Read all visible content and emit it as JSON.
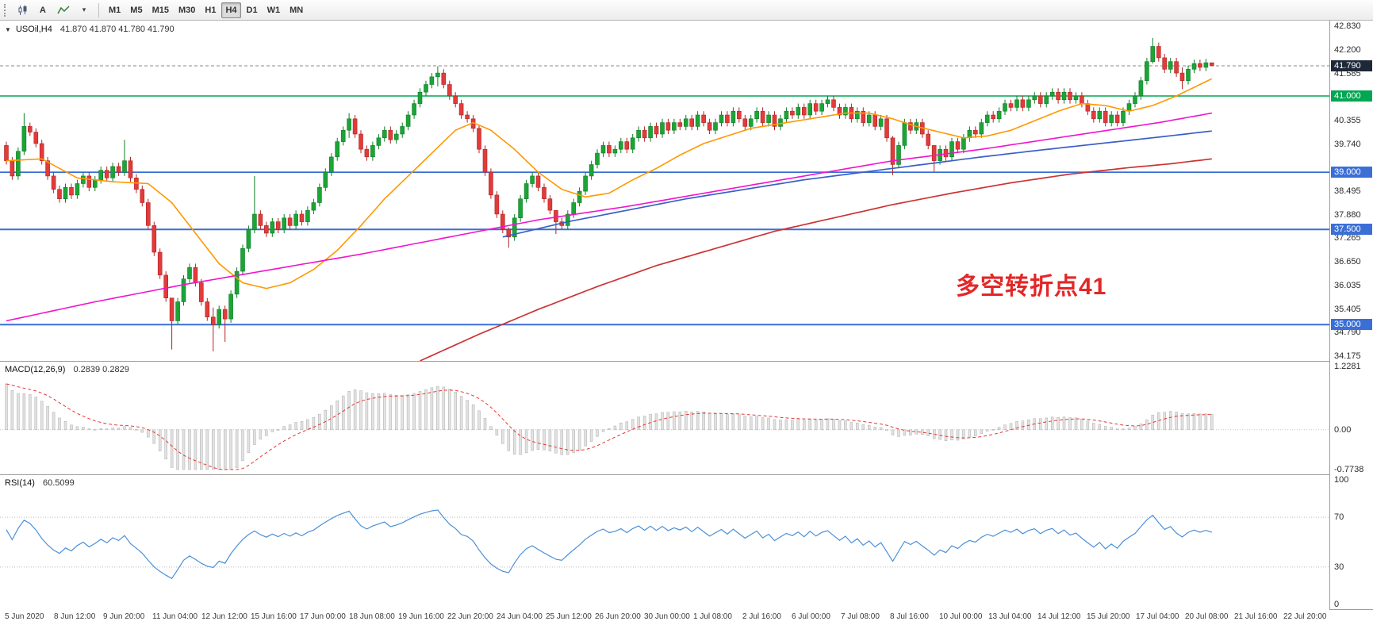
{
  "toolbar": {
    "text_tool_label": "A",
    "timeframes": [
      {
        "label": "M1",
        "active": false
      },
      {
        "label": "M5",
        "active": false
      },
      {
        "label": "M15",
        "active": false
      },
      {
        "label": "M30",
        "active": false
      },
      {
        "label": "H1",
        "active": false
      },
      {
        "label": "H4",
        "active": true
      },
      {
        "label": "D1",
        "active": false
      },
      {
        "label": "W1",
        "active": false
      },
      {
        "label": "MN",
        "active": false
      }
    ]
  },
  "header": {
    "dropdown_glyph": "▼",
    "symbol": "USOil,H4",
    "ohlc": "41.870 41.870 41.780 41.790"
  },
  "indicators": {
    "macd_label": "MACD(12,26,9)",
    "macd_values": "0.2839 0.2829",
    "rsi_label": "RSI(14)",
    "rsi_value": "60.5099"
  },
  "annotation": {
    "text": "多空转折点41"
  },
  "chart_data": {
    "type": "candlestick",
    "symbol": "USOil",
    "timeframe": "H4",
    "last_quote": {
      "open": 41.87,
      "high": 41.87,
      "low": 41.78,
      "close": 41.79
    },
    "y_range": [
      34.175,
      42.83
    ],
    "first_open": 39.7,
    "default_wick": 0.1,
    "closes": [
      39.3,
      38.9,
      39.55,
      40.2,
      40.05,
      39.75,
      39.3,
      38.9,
      38.55,
      38.3,
      38.6,
      38.4,
      38.7,
      38.9,
      38.6,
      38.8,
      39.05,
      38.85,
      39.15,
      39.0,
      39.3,
      38.85,
      38.55,
      38.2,
      37.6,
      36.9,
      36.3,
      35.7,
      35.1,
      35.6,
      36.2,
      36.5,
      36.1,
      35.6,
      35.2,
      35.0,
      35.4,
      35.15,
      35.8,
      36.4,
      37.0,
      37.5,
      37.9,
      37.6,
      37.4,
      37.7,
      37.5,
      37.8,
      37.6,
      37.9,
      37.7,
      38.0,
      38.2,
      38.6,
      39.0,
      39.4,
      39.8,
      40.1,
      40.4,
      40.0,
      39.6,
      39.4,
      39.7,
      39.9,
      40.1,
      39.85,
      40.0,
      40.2,
      40.5,
      40.8,
      41.1,
      41.3,
      41.5,
      41.6,
      41.3,
      41.0,
      40.8,
      40.5,
      40.4,
      40.15,
      39.6,
      39.0,
      38.4,
      37.9,
      37.5,
      37.3,
      37.8,
      38.3,
      38.7,
      38.9,
      38.6,
      38.3,
      38.0,
      37.7,
      37.6,
      37.9,
      38.2,
      38.5,
      38.9,
      39.2,
      39.5,
      39.7,
      39.5,
      39.6,
      39.8,
      39.6,
      39.9,
      40.1,
      39.9,
      40.2,
      40.0,
      40.3,
      40.1,
      40.3,
      40.2,
      40.4,
      40.2,
      40.5,
      40.3,
      40.1,
      40.3,
      40.5,
      40.3,
      40.6,
      40.4,
      40.2,
      40.4,
      40.6,
      40.3,
      40.5,
      40.2,
      40.4,
      40.6,
      40.5,
      40.7,
      40.5,
      40.8,
      40.6,
      40.8,
      40.9,
      40.7,
      40.5,
      40.7,
      40.4,
      40.6,
      40.3,
      40.5,
      40.2,
      40.4,
      39.9,
      39.2,
      39.7,
      40.3,
      40.1,
      40.3,
      40.0,
      39.7,
      39.3,
      39.6,
      39.4,
      39.8,
      39.6,
      39.9,
      40.1,
      40.0,
      40.3,
      40.5,
      40.4,
      40.6,
      40.8,
      40.7,
      40.9,
      40.7,
      40.9,
      41.0,
      40.8,
      41.0,
      41.1,
      40.9,
      41.1,
      40.9,
      41.0,
      40.8,
      40.6,
      40.4,
      40.6,
      40.3,
      40.5,
      40.3,
      40.6,
      40.8,
      41.0,
      41.4,
      41.9,
      42.3,
      42.0,
      41.7,
      41.9,
      41.6,
      41.4,
      41.7,
      41.85,
      41.75,
      41.87,
      41.79
    ],
    "wick_overrides": {
      "3": [
        40.55,
        39.45
      ],
      "20": [
        39.85,
        38.9
      ],
      "28": [
        35.45,
        34.35
      ],
      "35": [
        35.45,
        34.3
      ],
      "37": [
        35.5,
        34.55
      ],
      "42": [
        38.9,
        37.4
      ],
      "58": [
        40.55,
        39.9
      ],
      "73": [
        41.78,
        41.25
      ],
      "85": [
        37.55,
        37.02
      ],
      "93": [
        37.85,
        37.38
      ],
      "150": [
        39.95,
        38.92
      ],
      "157": [
        39.65,
        39.02
      ],
      "194": [
        42.52,
        41.85
      ],
      "199": [
        41.75,
        41.18
      ],
      "204": [
        41.87,
        41.78
      ]
    },
    "price_ticks": [
      42.83,
      42.2,
      41.585,
      40.355,
      39.74,
      38.495,
      37.88,
      37.265,
      36.65,
      36.035,
      35.405,
      34.79,
      34.175
    ],
    "price_badges": [
      {
        "value": 41.79,
        "type": "current"
      },
      {
        "value": 41.0,
        "type": "green"
      },
      {
        "value": 39.0,
        "type": "blue"
      },
      {
        "value": 37.5,
        "type": "blue"
      },
      {
        "value": 35.0,
        "type": "blue"
      }
    ],
    "levels": [
      {
        "value": 41.0,
        "color": "#00a651",
        "width": 1.6
      },
      {
        "value": 39.0,
        "color": "#3b6fd6",
        "width": 1.8
      },
      {
        "value": 37.5,
        "color": "#3b6fd6",
        "width": 2
      },
      {
        "value": 35.0,
        "color": "#3b6fd6",
        "width": 2
      },
      {
        "value": 41.79,
        "color": "#8a8a8a",
        "width": 1,
        "dash": "4 3"
      }
    ],
    "moving_averages": [
      {
        "name": "ma-fast-orange",
        "color": "#ff9800",
        "width": 1.6,
        "points": [
          [
            0,
            39.3
          ],
          [
            6,
            39.35
          ],
          [
            12,
            38.85
          ],
          [
            18,
            38.75
          ],
          [
            24,
            38.7
          ],
          [
            28,
            38.2
          ],
          [
            32,
            37.4
          ],
          [
            36,
            36.6
          ],
          [
            40,
            36.1
          ],
          [
            44,
            35.95
          ],
          [
            48,
            36.1
          ],
          [
            52,
            36.45
          ],
          [
            56,
            36.95
          ],
          [
            60,
            37.6
          ],
          [
            64,
            38.3
          ],
          [
            68,
            38.9
          ],
          [
            72,
            39.5
          ],
          [
            76,
            40.1
          ],
          [
            79,
            40.3
          ],
          [
            82,
            40.1
          ],
          [
            86,
            39.6
          ],
          [
            90,
            39.0
          ],
          [
            94,
            38.55
          ],
          [
            98,
            38.35
          ],
          [
            102,
            38.45
          ],
          [
            106,
            38.8
          ],
          [
            110,
            39.1
          ],
          [
            114,
            39.45
          ],
          [
            118,
            39.75
          ],
          [
            122,
            39.95
          ],
          [
            126,
            40.15
          ],
          [
            130,
            40.25
          ],
          [
            134,
            40.35
          ],
          [
            138,
            40.45
          ],
          [
            142,
            40.55
          ],
          [
            146,
            40.55
          ],
          [
            150,
            40.4
          ],
          [
            154,
            40.2
          ],
          [
            158,
            40.05
          ],
          [
            162,
            39.9
          ],
          [
            166,
            39.95
          ],
          [
            170,
            40.1
          ],
          [
            174,
            40.35
          ],
          [
            178,
            40.6
          ],
          [
            182,
            40.8
          ],
          [
            186,
            40.75
          ],
          [
            190,
            40.6
          ],
          [
            194,
            40.75
          ],
          [
            198,
            41.0
          ],
          [
            202,
            41.3
          ],
          [
            204,
            41.45
          ]
        ]
      },
      {
        "name": "ma-medium-magenta",
        "color": "#ef14ce",
        "width": 1.6,
        "points": [
          [
            0,
            35.1
          ],
          [
            15,
            35.6
          ],
          [
            30,
            36.05
          ],
          [
            45,
            36.45
          ],
          [
            60,
            36.85
          ],
          [
            75,
            37.3
          ],
          [
            90,
            37.75
          ],
          [
            105,
            38.1
          ],
          [
            120,
            38.5
          ],
          [
            135,
            38.9
          ],
          [
            150,
            39.3
          ],
          [
            165,
            39.6
          ],
          [
            180,
            39.95
          ],
          [
            195,
            40.3
          ],
          [
            204,
            40.55
          ]
        ]
      },
      {
        "name": "ma-slow-red",
        "color": "#cc3333",
        "width": 1.7,
        "points": [
          [
            70,
            34.05
          ],
          [
            80,
            34.75
          ],
          [
            90,
            35.4
          ],
          [
            100,
            36.0
          ],
          [
            110,
            36.55
          ],
          [
            120,
            37.0
          ],
          [
            130,
            37.45
          ],
          [
            140,
            37.8
          ],
          [
            150,
            38.15
          ],
          [
            160,
            38.45
          ],
          [
            170,
            38.72
          ],
          [
            180,
            38.95
          ],
          [
            190,
            39.12
          ],
          [
            197,
            39.22
          ],
          [
            204,
            39.35
          ]
        ]
      },
      {
        "name": "ma-slow-blue",
        "color": "#3a5fc8",
        "width": 1.7,
        "points": [
          [
            84,
            37.3
          ],
          [
            95,
            37.7
          ],
          [
            105,
            38.0
          ],
          [
            115,
            38.3
          ],
          [
            125,
            38.55
          ],
          [
            135,
            38.8
          ],
          [
            145,
            39.0
          ],
          [
            155,
            39.2
          ],
          [
            165,
            39.4
          ],
          [
            175,
            39.58
          ],
          [
            185,
            39.75
          ],
          [
            195,
            39.92
          ],
          [
            204,
            40.08
          ]
        ]
      }
    ],
    "macd": {
      "params": [
        12,
        26,
        9
      ],
      "seed_fast": 0.45,
      "seed_slow": -0.55,
      "axis": [
        {
          "label": "1.2281",
          "value": 1.2281
        },
        {
          "label": "0.00",
          "value": 0
        },
        {
          "label": "-0.7738",
          "value": -0.7738
        }
      ],
      "hist_fill": "#e2e2e2",
      "hist_stroke": "#adadad",
      "signal_color": "#e53935"
    },
    "rsi": {
      "period": 14,
      "seed_gain": 0.12,
      "seed_loss": 0.08,
      "color": "#4a90d9",
      "levels": [
        70,
        30
      ],
      "axis": [
        {
          "label": "100",
          "value": 100
        },
        {
          "label": "70",
          "value": 70
        },
        {
          "label": "30",
          "value": 30
        },
        {
          "label": "0",
          "value": 0
        }
      ]
    },
    "x_labels": [
      "5 Jun 2020",
      "8 Jun 12:00",
      "9 Jun 20:00",
      "11 Jun 04:00",
      "12 Jun 12:00",
      "15 Jun 16:00",
      "17 Jun 00:00",
      "18 Jun 08:00",
      "19 Jun 16:00",
      "22 Jun 20:00",
      "24 Jun 04:00",
      "25 Jun 12:00",
      "26 Jun 20:00",
      "30 Jun 00:00",
      "1 Jul 08:00",
      "2 Jul 16:00",
      "6 Jul 00:00",
      "7 Jul 08:00",
      "8 Jul 16:00",
      "10 Jul 00:00",
      "13 Jul 04:00",
      "14 Jul 12:00",
      "15 Jul 20:00",
      "17 Jul 04:00",
      "20 Jul 08:00",
      "21 Jul 16:00",
      "22 Jul 20:00"
    ],
    "colors": {
      "up": "#1ca437",
      "up_stroke": "#0e7d26",
      "down": "#e23b3b",
      "down_stroke": "#b02424",
      "bg": "#ffffff"
    }
  }
}
